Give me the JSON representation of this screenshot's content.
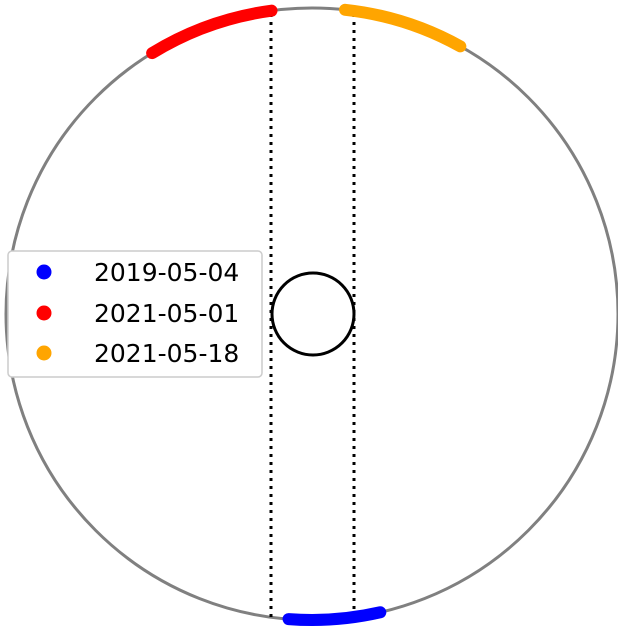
{
  "colors": {
    "orbit": "#808080",
    "center_body": "#000000",
    "guide_lines": "#000000",
    "legend_border": "#cccccc",
    "legend_background": "#ffffff"
  },
  "legend": {
    "placement": "center-left",
    "entries": [
      {
        "label": "2019-05-04",
        "color": "#0000ff"
      },
      {
        "label": "2021-05-01",
        "color": "#ff0000"
      },
      {
        "label": "2021-05-18",
        "color": "#ffa500"
      }
    ]
  },
  "tracks": [
    {
      "color": "#0000ff",
      "start_deg": 265.6,
      "end_deg": 282.9
    },
    {
      "color": "#ff0000",
      "start_deg": 97.6,
      "end_deg": 121.5
    },
    {
      "color": "#ffa500",
      "start_deg": 61.0,
      "end_deg": 83.8
    }
  ]
}
